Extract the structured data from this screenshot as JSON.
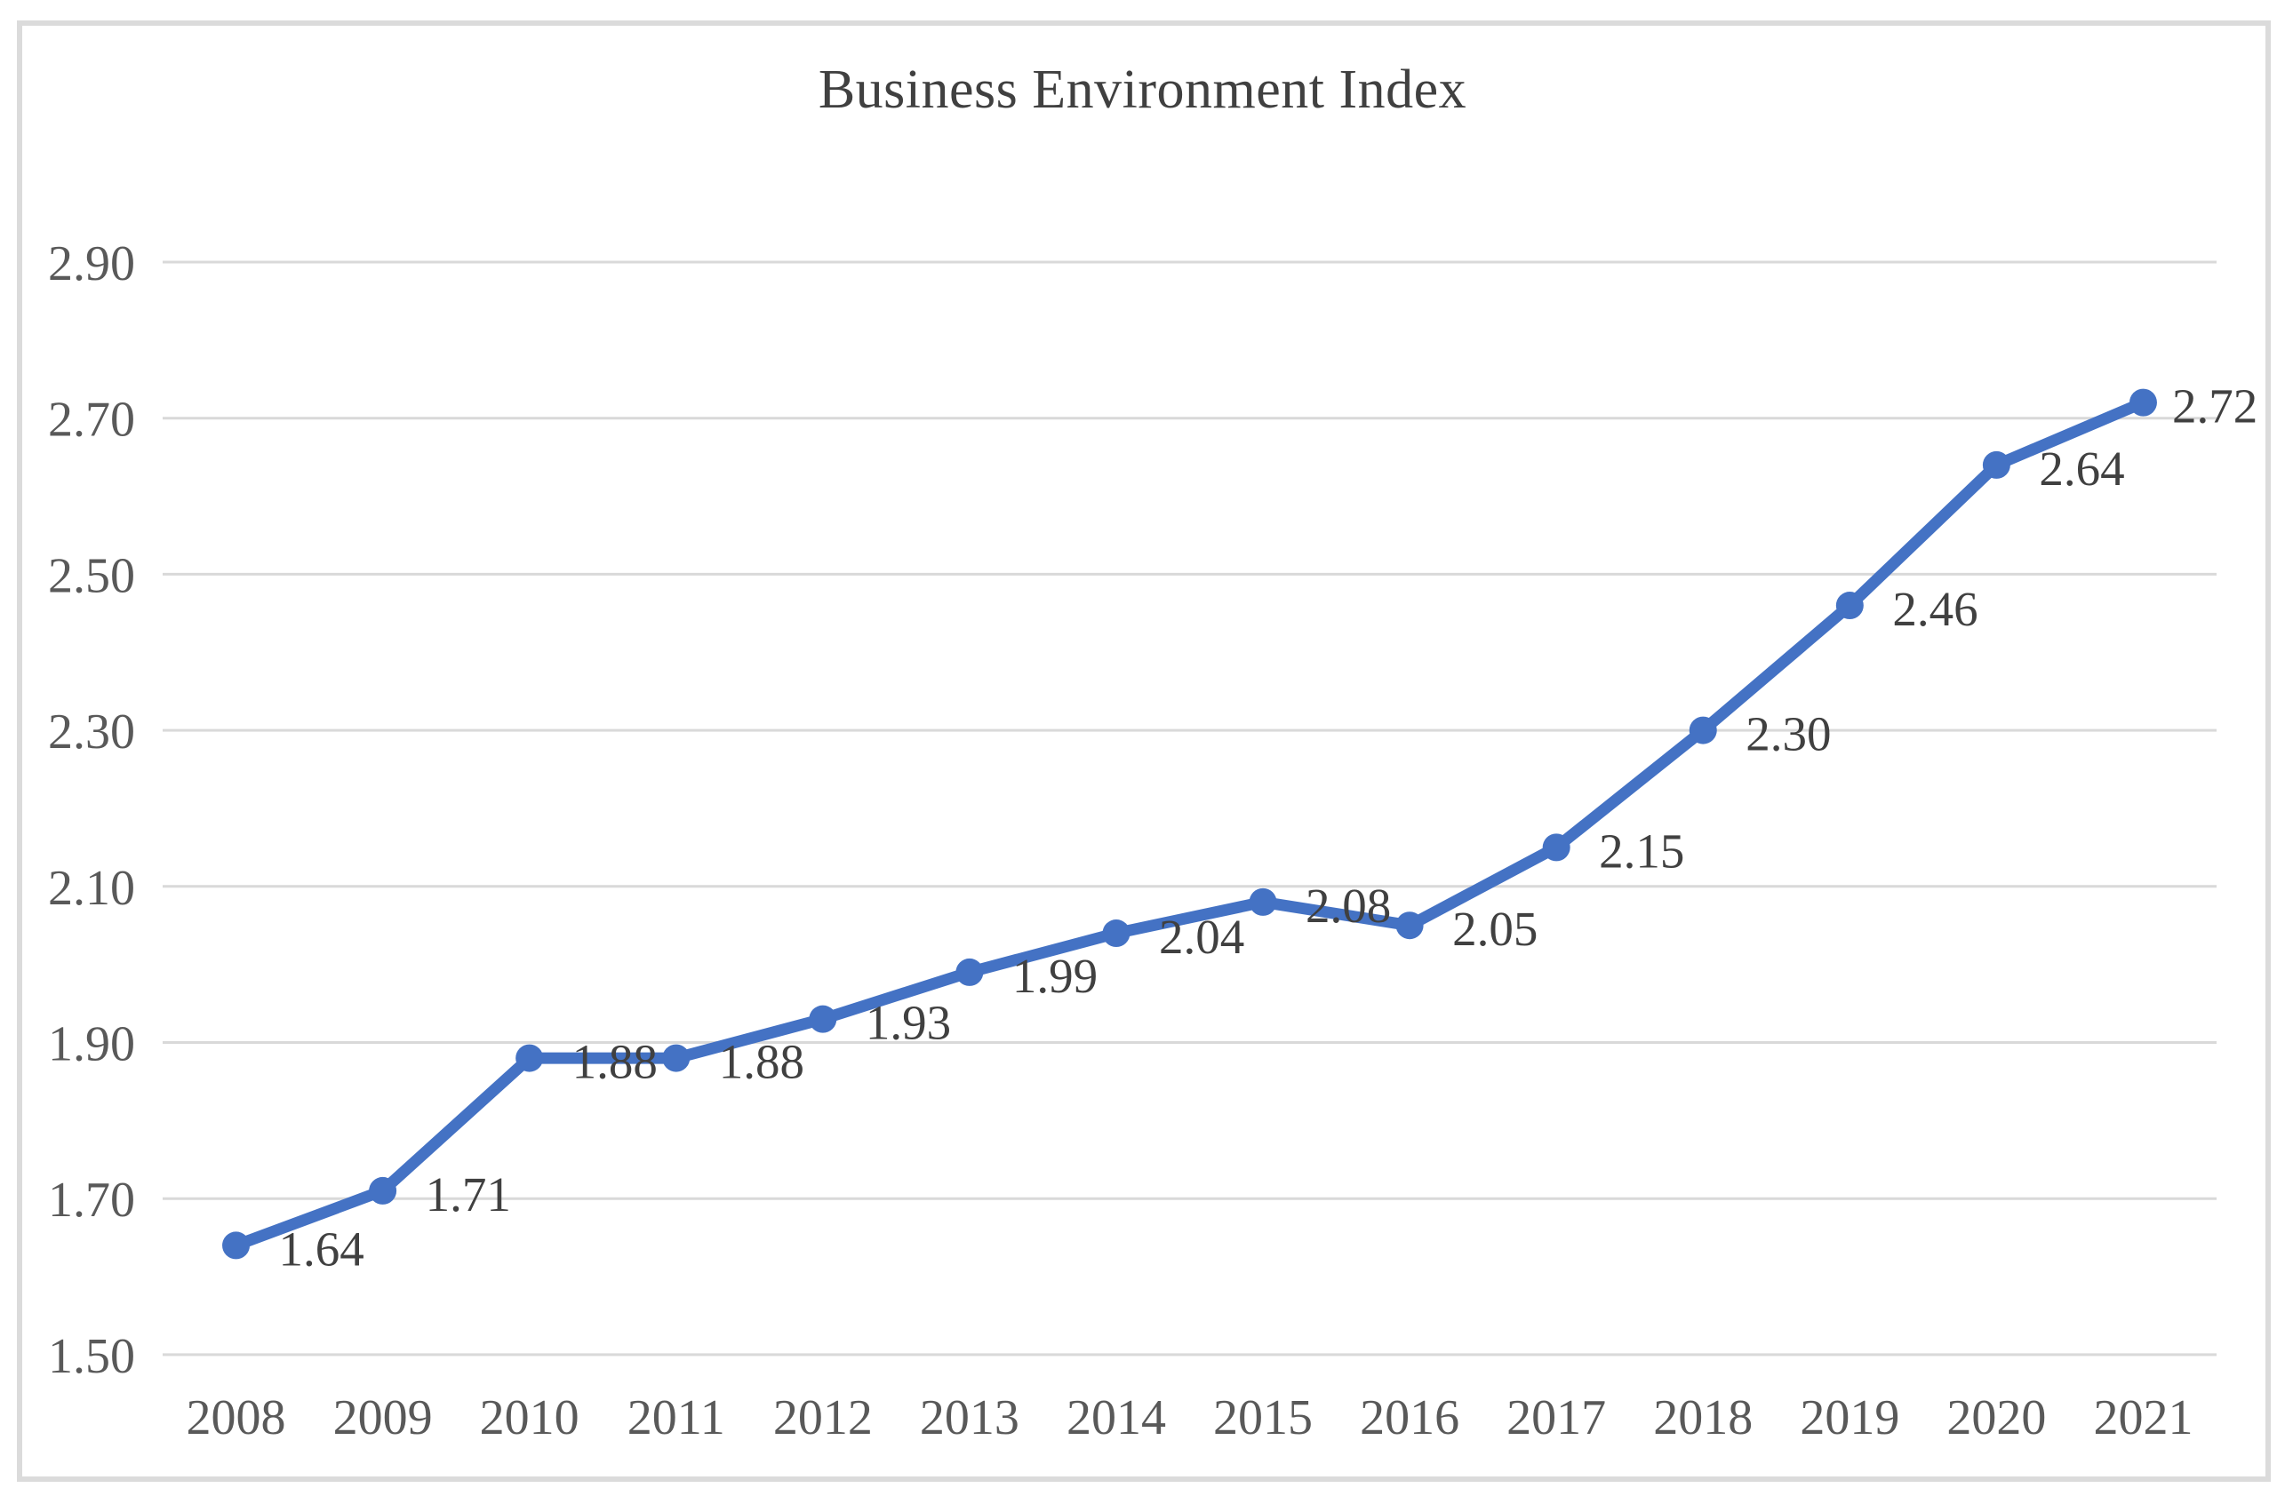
{
  "chart_data": {
    "type": "line",
    "title": "Business Environment Index",
    "categories": [
      "2008",
      "2009",
      "2010",
      "2011",
      "2012",
      "2013",
      "2014",
      "2015",
      "2016",
      "2017",
      "2018",
      "2019",
      "2020",
      "2021"
    ],
    "series": [
      {
        "name": "Business Environment Index",
        "values": [
          1.64,
          1.71,
          1.88,
          1.88,
          1.93,
          1.99,
          2.04,
          2.08,
          2.05,
          2.15,
          2.3,
          2.46,
          2.64,
          2.72
        ]
      }
    ],
    "point_labels": [
      "1.64",
      "1.71",
      "1.88",
      "1.88",
      "1.93",
      "1.99",
      "2.04",
      "2.08",
      "2.05",
      "2.15",
      "2.30",
      "2.46",
      "2.64",
      "2.72"
    ],
    "y_tick_labels": [
      "2.90",
      "2.70",
      "2.50",
      "2.30",
      "2.10",
      "1.90",
      "1.70",
      "1.50"
    ],
    "ylim": [
      1.5,
      2.9
    ],
    "y_tick_step": 0.2,
    "grid": "horizontal",
    "legend_position": "none",
    "xlabel": "",
    "ylabel": "",
    "colors": {
      "line": "#4472C4",
      "marker": "#4472C4",
      "gridline": "#D9D9D9",
      "axis_label": "#595959",
      "data_label": "#404040",
      "title": "#404040",
      "chart_border": "#DBDBDB",
      "background": "#FFFFFF"
    }
  }
}
